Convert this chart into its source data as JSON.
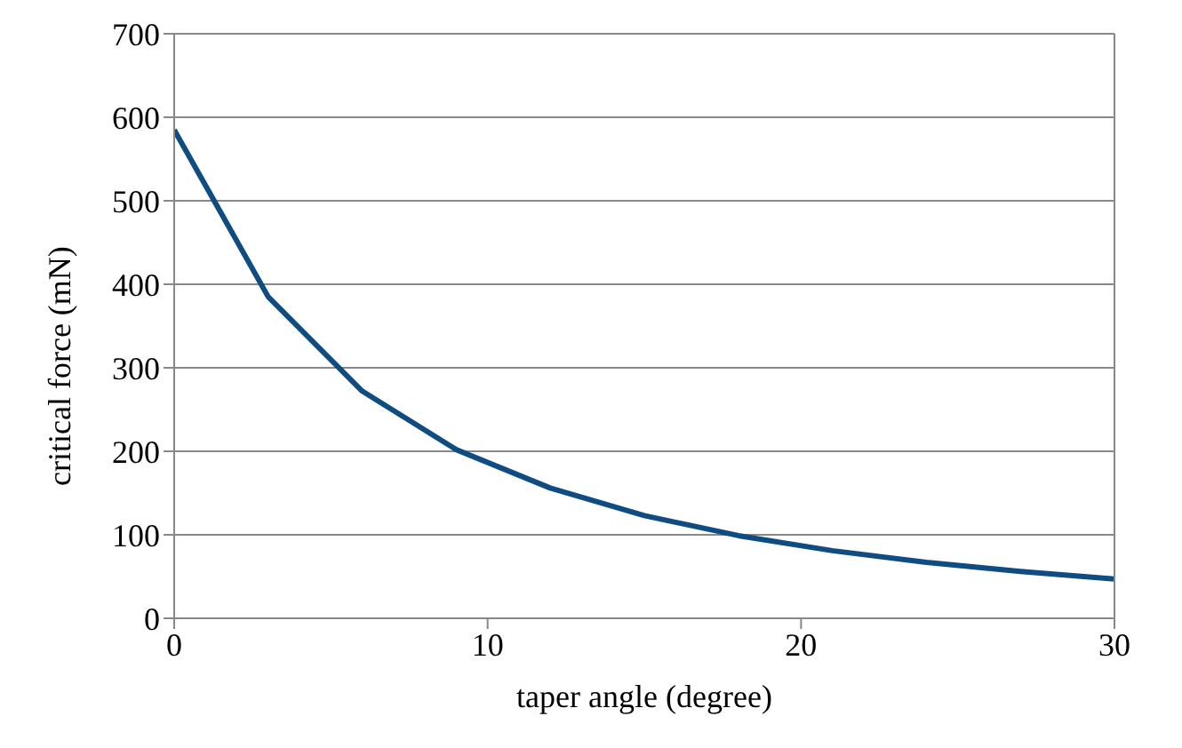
{
  "chart_data": {
    "type": "line",
    "xlabel": "taper angle (degree)",
    "ylabel": "critical force (mN)",
    "x": [
      0,
      3,
      6,
      9,
      12,
      15,
      18,
      21,
      24,
      27,
      30
    ],
    "series": [
      {
        "color": "#0f4c81",
        "values": [
          585,
          385,
          272,
          202,
          156,
          123,
          99,
          81,
          67,
          56,
          47
        ]
      }
    ],
    "xlim": [
      0,
      30
    ],
    "xticks": [
      0,
      10,
      20,
      30
    ],
    "ylim": [
      0,
      700
    ],
    "yticks": [
      0,
      100,
      200,
      300,
      400,
      500,
      600,
      700
    ],
    "grid": "y",
    "legend": false,
    "marker": "none",
    "line_style": "solid"
  }
}
